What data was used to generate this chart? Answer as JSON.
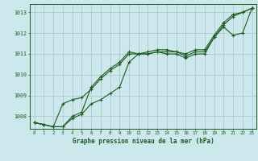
{
  "title": "Graphe pression niveau de la mer (hPa)",
  "bg_color": "#cce8ec",
  "grid_color": "#b0c8cc",
  "line_color": "#1a5c1a",
  "xlim": [
    -0.5,
    23.5
  ],
  "ylim": [
    1007.4,
    1013.4
  ],
  "yticks": [
    1008,
    1009,
    1010,
    1011,
    1012,
    1013
  ],
  "xticks": [
    0,
    1,
    2,
    3,
    4,
    5,
    6,
    7,
    8,
    9,
    10,
    11,
    12,
    13,
    14,
    15,
    16,
    17,
    18,
    19,
    20,
    21,
    22,
    23
  ],
  "series": [
    [
      1007.7,
      1007.6,
      1007.5,
      1007.5,
      1008.0,
      1008.2,
      1009.4,
      1009.9,
      1010.3,
      1010.6,
      1011.1,
      1011.0,
      1011.1,
      1011.2,
      1011.2,
      1011.1,
      1011.0,
      1011.2,
      1011.2,
      1011.9,
      1012.5,
      1012.9,
      1013.0,
      1013.2
    ],
    [
      1007.7,
      1007.6,
      1007.5,
      1007.5,
      1007.9,
      1008.1,
      1008.6,
      1008.8,
      1009.1,
      1009.4,
      1010.6,
      1011.0,
      1011.0,
      1011.1,
      1011.1,
      1011.1,
      1010.9,
      1011.1,
      1011.1,
      1011.8,
      1012.4,
      1012.8,
      1013.0,
      1013.2
    ],
    [
      1007.7,
      1007.6,
      1007.5,
      1008.6,
      1008.8,
      1008.9,
      1009.3,
      1009.8,
      1010.2,
      1010.5,
      1011.0,
      1011.0,
      1011.0,
      1011.1,
      1011.0,
      1011.0,
      1010.8,
      1011.0,
      1011.0,
      1011.8,
      1012.3,
      1011.9,
      1012.0,
      1013.2
    ]
  ]
}
